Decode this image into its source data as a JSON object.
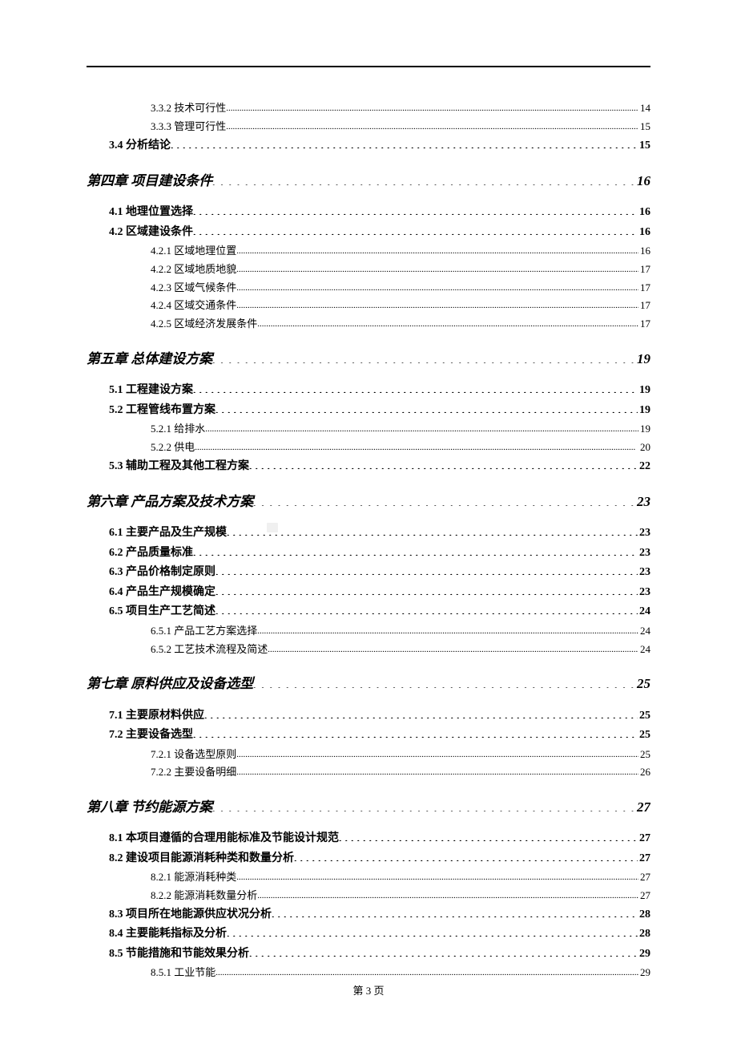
{
  "page_footer": "第 3 页",
  "entries": [
    {
      "level": "sub",
      "label": "3.3.2 技术可行性",
      "page": "14"
    },
    {
      "level": "sub",
      "label": "3.3.3 管理可行性",
      "page": "15"
    },
    {
      "level": "section",
      "label": "3.4 分析结论",
      "page": "15"
    },
    {
      "level": "chapter",
      "label": "第四章  项目建设条件",
      "page": "16"
    },
    {
      "level": "section",
      "label": "4.1 地理位置选择",
      "page": "16"
    },
    {
      "level": "section",
      "label": "4.2 区域建设条件",
      "page": "16"
    },
    {
      "level": "sub",
      "label": "4.2.1 区域地理位置",
      "page": "16"
    },
    {
      "level": "sub",
      "label": "4.2.2 区域地质地貌",
      "page": "17"
    },
    {
      "level": "sub",
      "label": "4.2.3 区域气候条件",
      "page": "17"
    },
    {
      "level": "sub",
      "label": "4.2.4 区域交通条件",
      "page": "17"
    },
    {
      "level": "sub",
      "label": "4.2.5 区域经济发展条件",
      "page": "17"
    },
    {
      "level": "chapter",
      "label": "第五章  总体建设方案",
      "page": "19"
    },
    {
      "level": "section",
      "label": "5.1 工程建设方案",
      "page": "19"
    },
    {
      "level": "section",
      "label": "5.2 工程管线布置方案",
      "page": "19"
    },
    {
      "level": "sub",
      "label": "5.2.1 给排水",
      "page": "19"
    },
    {
      "level": "sub",
      "label": "5.2.2 供电",
      "page": "20"
    },
    {
      "level": "section",
      "label": "5.3 辅助工程及其他工程方案",
      "page": "22"
    },
    {
      "level": "chapter",
      "label": "第六章  产品方案及技术方案",
      "page": "23"
    },
    {
      "level": "section",
      "label": "6.1 主要产品及生产规模",
      "page": "23"
    },
    {
      "level": "section",
      "label": "6.2 产品质量标准",
      "page": "23"
    },
    {
      "level": "section",
      "label": "6.3 产品价格制定原则",
      "page": "23"
    },
    {
      "level": "section",
      "label": "6.4 产品生产规模确定",
      "page": "23"
    },
    {
      "level": "section",
      "label": "6.5 项目生产工艺简述",
      "page": "24"
    },
    {
      "level": "sub",
      "label": "6.5.1 产品工艺方案选择",
      "page": "24"
    },
    {
      "level": "sub",
      "label": "6.5.2 工艺技术流程及简述",
      "page": "24"
    },
    {
      "level": "chapter",
      "label": "第七章  原料供应及设备选型",
      "page": "25"
    },
    {
      "level": "section",
      "label": "7.1 主要原材料供应",
      "page": "25"
    },
    {
      "level": "section",
      "label": "7.2 主要设备选型",
      "page": "25"
    },
    {
      "level": "sub",
      "label": "7.2.1 设备选型原则",
      "page": "25"
    },
    {
      "level": "sub",
      "label": "7.2.2 主要设备明细",
      "page": "26"
    },
    {
      "level": "chapter",
      "label": "第八章  节约能源方案",
      "page": "27"
    },
    {
      "level": "section",
      "label": "8.1 本项目遵循的合理用能标准及节能设计规范",
      "page": "27"
    },
    {
      "level": "section",
      "label": "8.2 建设项目能源消耗种类和数量分析",
      "page": "27"
    },
    {
      "level": "sub",
      "label": "8.2.1 能源消耗种类",
      "page": "27"
    },
    {
      "level": "sub",
      "label": "8.2.2 能源消耗数量分析",
      "page": "27"
    },
    {
      "level": "section",
      "label": "8.3 项目所在地能源供应状况分析",
      "page": "28"
    },
    {
      "level": "section",
      "label": "8.4 主要能耗指标及分析",
      "page": "28"
    },
    {
      "level": "section",
      "label": "8.5 节能措施和节能效果分析",
      "page": "29"
    },
    {
      "level": "sub",
      "label": "8.5.1 工业节能",
      "page": "29"
    }
  ]
}
